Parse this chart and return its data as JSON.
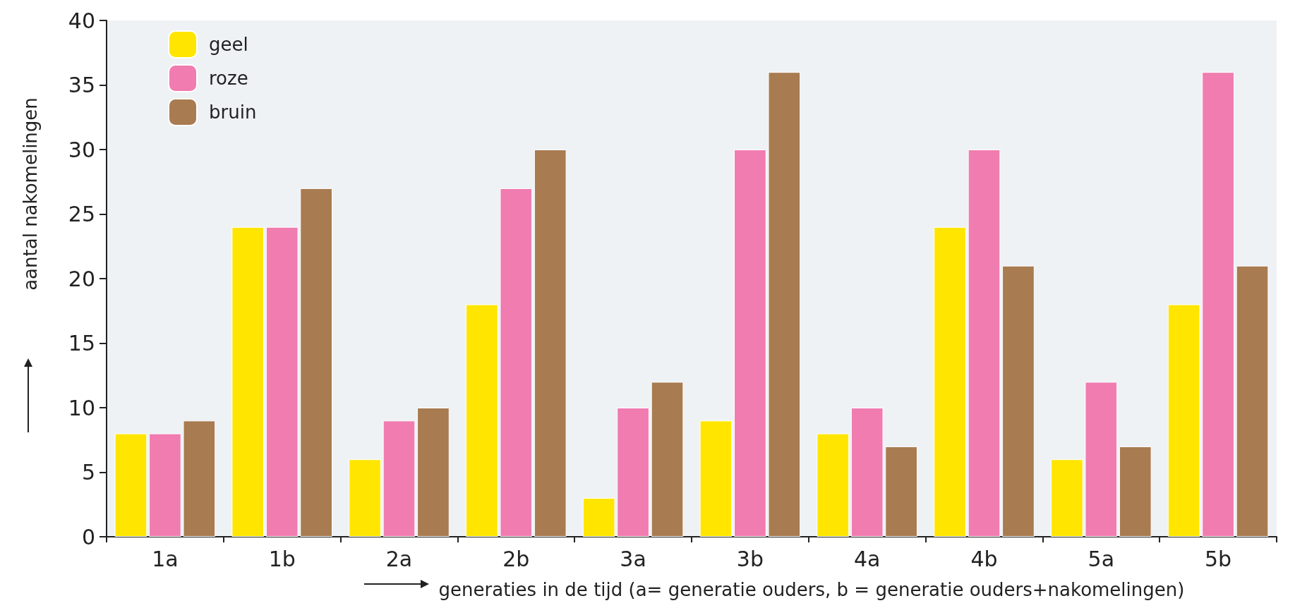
{
  "chart_data": {
    "type": "bar",
    "xlabel": "generaties in de tijd (a= generatie ouders, b = generatie ouders+nakomelingen)",
    "ylabel": "aantal nakomelingen",
    "categories": [
      "1a",
      "1b",
      "2a",
      "2b",
      "3a",
      "3b",
      "4a",
      "4b",
      "5a",
      "5b"
    ],
    "series": [
      {
        "name": "geel",
        "color": "#ffe500",
        "values": [
          8,
          24,
          6,
          18,
          3,
          9,
          8,
          24,
          6,
          18
        ]
      },
      {
        "name": "roze",
        "color": "#f07cb0",
        "values": [
          8,
          24,
          9,
          27,
          10,
          30,
          10,
          30,
          12,
          36
        ]
      },
      {
        "name": "bruin",
        "color": "#a87b50",
        "values": [
          9,
          27,
          10,
          30,
          12,
          36,
          7,
          21,
          7,
          21
        ]
      }
    ],
    "ylim": [
      0,
      40
    ],
    "yticks": [
      0,
      5,
      10,
      15,
      20,
      25,
      30,
      35,
      40
    ],
    "grid": false,
    "legend": "top left"
  }
}
